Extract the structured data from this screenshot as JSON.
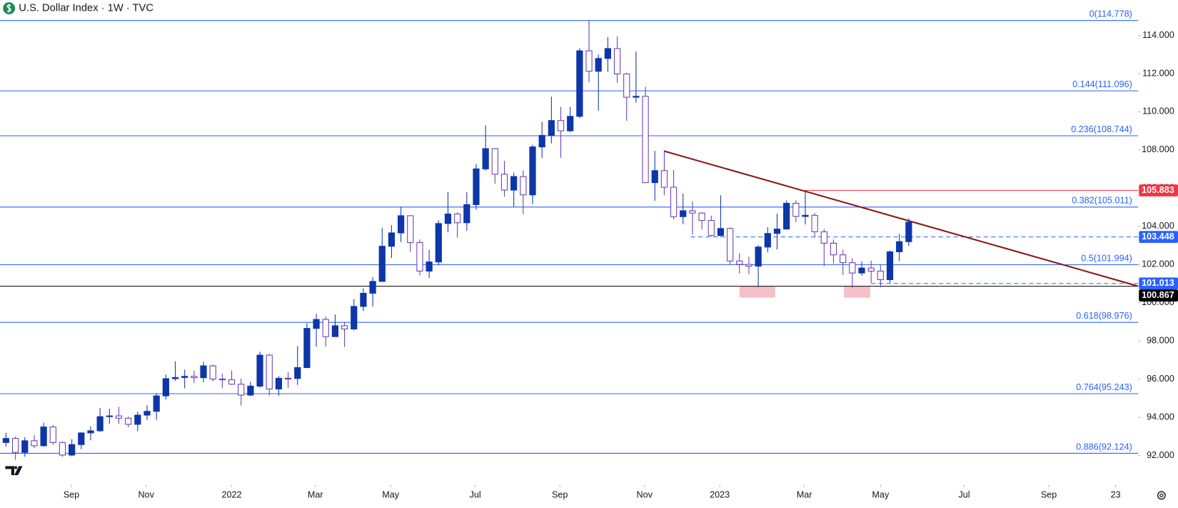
{
  "chart_data": {
    "type": "candlestick",
    "title": "U.S. Dollar Index · 1W · TVC",
    "open": [
      92.69,
      92.9,
      92.17,
      92.78,
      92.52,
      93.5,
      92.69,
      92.03,
      92.58,
      93.19,
      93.3,
      94.04,
      94.08,
      93.96,
      93.64,
      94.12,
      94.32,
      95.13,
      96.03,
      96.09,
      96.15,
      96.08,
      96.7,
      96.01,
      95.97,
      95.74,
      95.17,
      95.64,
      97.26,
      95.49,
      96.05,
      96.04,
      96.61,
      98.66,
      99.13,
      98.23,
      98.8,
      98.63,
      99.81,
      100.5,
      101.12,
      102.96,
      103.66,
      104.56,
      103.15,
      101.66,
      102.14,
      104.15,
      104.65,
      104.19,
      105.14,
      107.01,
      108.07,
      106.73,
      105.9,
      106.61,
      105.65,
      108.16,
      108.76,
      109.54,
      109.0,
      109.76,
      113.19,
      112.12,
      112.79,
      113.31,
      111.98,
      110.76,
      110.81,
      106.29,
      106.92,
      106.05,
      104.51,
      104.82,
      104.7,
      104.31,
      103.52,
      103.89,
      102.19,
      102.01,
      101.92,
      102.92,
      103.63,
      103.86,
      105.21,
      104.52,
      104.58,
      103.72,
      103.12,
      102.51,
      102.1,
      101.56,
      101.82,
      101.66,
      101.21,
      102.67,
      103.2
    ],
    "high": [
      93.19,
      93.0,
      92.97,
      93.08,
      93.73,
      93.59,
      92.74,
      92.86,
      93.22,
      93.53,
      94.5,
      94.45,
      94.56,
      94.04,
      94.3,
      94.63,
      95.27,
      96.25,
      96.94,
      96.5,
      96.45,
      96.91,
      96.77,
      96.3,
      96.46,
      96.03,
      95.87,
      97.44,
      97.32,
      96.16,
      96.38,
      97.73,
      98.93,
      99.42,
      99.29,
      99.39,
      99.01,
      100.19,
      100.76,
      101.35,
      103.93,
      104.07,
      105.01,
      104.32,
      103.32,
      102.77,
      104.32,
      105.79,
      104.73,
      105.79,
      107.27,
      109.29,
      108.05,
      107.43,
      106.81,
      106.93,
      108.27,
      109.48,
      110.79,
      110.25,
      110.25,
      113.33,
      114.78,
      113.0,
      113.9,
      113.95,
      112.04,
      113.15,
      111.31,
      107.95,
      107.99,
      106.95,
      105.72,
      105.3,
      104.74,
      104.56,
      105.63,
      103.95,
      102.6,
      102.42,
      103.01,
      103.96,
      104.67,
      105.36,
      105.36,
      105.88,
      104.7,
      103.87,
      103.31,
      102.78,
      102.34,
      102.17,
      102.21,
      102.0,
      102.73,
      103.62,
      104.42
    ],
    "low": [
      92.48,
      91.78,
      91.94,
      92.4,
      92.47,
      92.57,
      91.94,
      91.97,
      92.34,
      92.8,
      93.25,
      93.67,
      93.67,
      93.49,
      93.28,
      93.87,
      93.87,
      94.94,
      95.92,
      95.52,
      95.8,
      95.85,
      95.88,
      95.54,
      95.71,
      94.63,
      95.11,
      95.57,
      95.14,
      95.14,
      95.55,
      95.7,
      96.58,
      97.71,
      97.71,
      98.22,
      97.69,
      98.56,
      99.57,
      99.81,
      101.11,
      102.35,
      103.18,
      102.67,
      101.44,
      101.3,
      101.96,
      103.69,
      103.41,
      103.77,
      104.87,
      106.92,
      106.24,
      105.55,
      105.03,
      104.64,
      105.17,
      107.59,
      108.35,
      107.59,
      108.95,
      109.68,
      111.55,
      110.06,
      112.09,
      111.52,
      109.53,
      110.48,
      106.28,
      105.34,
      105.63,
      104.37,
      104.11,
      103.56,
      103.83,
      103.46,
      103.48,
      101.99,
      101.53,
      101.5,
      100.82,
      102.64,
      102.79,
      103.85,
      104.23,
      104.1,
      103.43,
      101.92,
      102.06,
      101.46,
      100.79,
      101.42,
      101.04,
      100.81,
      101.02,
      102.19,
      102.97
    ],
    "close": [
      92.9,
      92.17,
      92.78,
      92.52,
      93.5,
      92.69,
      92.03,
      92.58,
      93.19,
      93.3,
      94.04,
      94.08,
      93.96,
      93.64,
      94.12,
      94.32,
      95.13,
      96.03,
      96.09,
      96.15,
      96.08,
      96.7,
      96.01,
      95.97,
      95.74,
      95.17,
      95.64,
      97.26,
      95.49,
      96.05,
      96.04,
      96.61,
      98.66,
      99.13,
      98.23,
      98.8,
      98.63,
      99.81,
      100.5,
      101.12,
      102.96,
      103.66,
      104.56,
      103.15,
      101.66,
      102.14,
      104.15,
      104.65,
      104.19,
      105.14,
      107.01,
      108.07,
      106.73,
      105.9,
      106.61,
      105.65,
      108.16,
      108.76,
      109.54,
      109.0,
      109.76,
      113.19,
      112.12,
      112.79,
      113.31,
      111.98,
      110.76,
      110.81,
      106.29,
      106.92,
      106.05,
      104.51,
      104.82,
      104.7,
      104.31,
      103.52,
      103.89,
      102.19,
      102.01,
      101.92,
      102.92,
      103.63,
      103.86,
      105.21,
      104.52,
      104.58,
      103.72,
      103.12,
      102.51,
      102.1,
      101.56,
      101.82,
      101.66,
      101.21,
      102.67,
      103.2,
      104.22
    ],
    "up_color": "#0d36a8",
    "down_color": "#ffffff",
    "down_border": "#6a3cb4",
    "xlim": [
      -0.64,
      120.4
    ],
    "ylim": [
      90.47,
      115.85
    ],
    "xticks": [
      {
        "value": 6.95,
        "label": "Sep"
      },
      {
        "value": 14.9,
        "label": "Nov"
      },
      {
        "value": 24,
        "label": "2022"
      },
      {
        "value": 32.9,
        "label": "Mar"
      },
      {
        "value": 40.9,
        "label": "May"
      },
      {
        "value": 49.9,
        "label": "Jul"
      },
      {
        "value": 58.9,
        "label": "Sep"
      },
      {
        "value": 67.9,
        "label": "Nov"
      },
      {
        "value": 75.9,
        "label": "2023"
      },
      {
        "value": 84.9,
        "label": "Mar"
      },
      {
        "value": 93,
        "label": "May"
      },
      {
        "value": 101.9,
        "label": "Jul"
      },
      {
        "value": 110.9,
        "label": "Sep"
      },
      {
        "value": 118,
        "label": "23"
      }
    ],
    "yticks": [
      {
        "value": 92,
        "label": "92.000"
      },
      {
        "value": 94,
        "label": "94.000"
      },
      {
        "value": 96,
        "label": "96.000"
      },
      {
        "value": 98,
        "label": "98.000"
      },
      {
        "value": 100,
        "label": "100.000"
      },
      {
        "value": 102,
        "label": "102.000"
      },
      {
        "value": 104,
        "label": "104.000"
      },
      {
        "value": 106,
        "label": "106.000"
      },
      {
        "value": 108,
        "label": "108.000"
      },
      {
        "value": 110,
        "label": "110.000"
      },
      {
        "value": 112,
        "label": "112.000"
      },
      {
        "value": 114,
        "label": "114.000"
      }
    ],
    "fib_color": "#2962ff",
    "fib_levels": [
      {
        "value": 114.778,
        "label": "0(114.778)"
      },
      {
        "value": 111.096,
        "label": "0.144(111.096)"
      },
      {
        "value": 108.744,
        "label": "0.236(108.744)"
      },
      {
        "value": 105.011,
        "label": "0.382(105.011)"
      },
      {
        "value": 101.994,
        "label": "0.5(101.994)"
      },
      {
        "value": 98.976,
        "label": "0.618(98.976)"
      },
      {
        "value": 95.243,
        "label": "0.764(95.243)"
      },
      {
        "value": 92.124,
        "label": "0.886(92.124)"
      }
    ],
    "price_lines": [
      {
        "value": 105.883,
        "color": "#f23645",
        "from": 84.9,
        "dashed": false
      },
      {
        "value": 103.448,
        "color": "#2962ff",
        "from": 72.8,
        "dashed": true
      },
      {
        "value": 101.013,
        "color": "#2962ff",
        "from": 92,
        "dashed": true
      },
      {
        "value": 100.867,
        "color": "#000000",
        "from": -0.64,
        "dashed": false
      }
    ],
    "trendline": {
      "x": [
        70,
        120.4
      ],
      "y": [
        107.94,
        100.87
      ],
      "color": "#8b1a1a"
    },
    "zones": [
      {
        "x": [
          78,
          81.8
        ],
        "y": [
          100.27,
          100.86
        ]
      },
      {
        "x": [
          89.1,
          91.9
        ],
        "y": [
          100.27,
          100.86
        ]
      }
    ],
    "zone_color": "#f5b5bd"
  }
}
